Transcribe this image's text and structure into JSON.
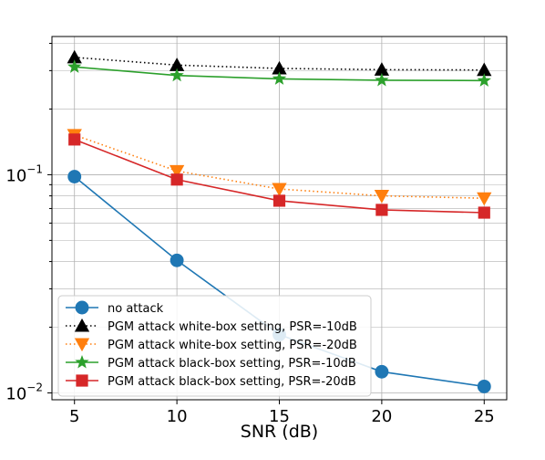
{
  "chart_data": {
    "type": "line",
    "xlabel": "SNR (dB)",
    "ylabel": "",
    "y_scale": "log",
    "xlim": [
      3.9,
      26.1
    ],
    "ylim": [
      0.0093,
      0.43
    ],
    "grid": true,
    "legend_position": "lower-left",
    "x": [
      5,
      10,
      15,
      20,
      25
    ],
    "x_ticks": [
      {
        "value": 5,
        "label": "5"
      },
      {
        "value": 10,
        "label": "10"
      },
      {
        "value": 15,
        "label": "15"
      },
      {
        "value": 20,
        "label": "20"
      },
      {
        "value": 25,
        "label": "25"
      }
    ],
    "y_ticks": [
      {
        "value": 0.1,
        "label": "10",
        "exp": "−1"
      },
      {
        "value": 0.01,
        "label": "10",
        "exp": "−2"
      }
    ],
    "series": [
      {
        "name": "no attack",
        "color": "#1f77b4",
        "marker": "circle",
        "line": "solid",
        "values": [
          0.098,
          0.0405,
          0.0185,
          0.0125,
          0.0107
        ]
      },
      {
        "name": "PGM attack white-box setting, PSR=-10dB",
        "color": "#000000",
        "marker": "triangle-up",
        "line": "dotted",
        "values": [
          0.345,
          0.318,
          0.307,
          0.303,
          0.302
        ]
      },
      {
        "name": "PGM attack white-box setting, PSR=-20dB",
        "color": "#ff7f0e",
        "marker": "triangle-down",
        "line": "dotted",
        "values": [
          0.152,
          0.104,
          0.086,
          0.08,
          0.078
        ]
      },
      {
        "name": "PGM attack black-box setting, PSR=-10dB",
        "color": "#2ca02c",
        "marker": "star",
        "line": "solid",
        "values": [
          0.312,
          0.285,
          0.275,
          0.271,
          0.27
        ]
      },
      {
        "name": "PGM attack black-box setting, PSR=-20dB",
        "color": "#d62728",
        "marker": "square",
        "line": "solid",
        "values": [
          0.145,
          0.095,
          0.076,
          0.069,
          0.067
        ]
      }
    ]
  }
}
